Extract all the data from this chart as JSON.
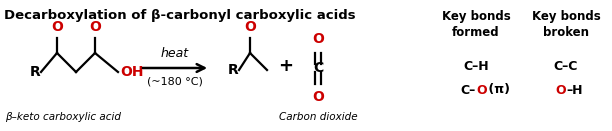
{
  "title": "Decarboxylation of β-carbonyl carboxylic acids",
  "bg_color": "#ffffff",
  "black": "#000000",
  "red": "#cc0000",
  "fig_width": 6.12,
  "fig_height": 1.31,
  "dpi": 100,
  "label_beta_keto": "β–keto carboxylic acid",
  "label_carbon_dioxide": "Carbon dioxide",
  "heat_label": "heat",
  "temp_label": "(~180 °C)",
  "key_bonds_formed_title": "Key bonds\nformed",
  "key_bonds_broken_title": "Key bonds\nbroken"
}
